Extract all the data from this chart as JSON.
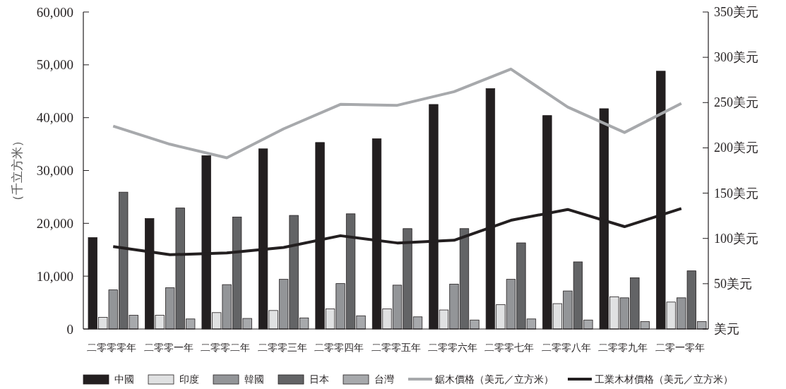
{
  "chart_data": {
    "type": "bar",
    "ylabel": "（千立方米）",
    "categories": [
      "二零零零年",
      "二零零一年",
      "二零零二年",
      "二零零三年",
      "二零零四年",
      "二零零五年",
      "二零零六年",
      "二零零七年",
      "二零零八年",
      "二零零九年",
      "二零一零年"
    ],
    "series": [
      {
        "name": "中國",
        "color": "#231f20",
        "values": [
          17300,
          20900,
          32800,
          34100,
          35300,
          36000,
          42500,
          45500,
          40400,
          41700,
          48800
        ]
      },
      {
        "name": "印度",
        "color": "#e0e1e2",
        "values": [
          2200,
          2600,
          3100,
          3500,
          3800,
          3800,
          3600,
          4600,
          4800,
          6100,
          5100
        ]
      },
      {
        "name": "韓國",
        "color": "#939598",
        "values": [
          7400,
          7800,
          8400,
          9400,
          8600,
          8300,
          8500,
          9400,
          7200,
          5900,
          5900
        ]
      },
      {
        "name": "日本",
        "color": "#636466",
        "values": [
          25900,
          22900,
          21200,
          21500,
          21800,
          19000,
          19000,
          16300,
          12700,
          9700,
          11000
        ]
      },
      {
        "name": "台灣",
        "color": "#a7a9ac",
        "values": [
          2600,
          1900,
          2000,
          2100,
          2500,
          2300,
          1700,
          1900,
          1700,
          1400,
          1400
        ]
      },
      {
        "name": "鋸木價格（美元／立方米）",
        "type": "line",
        "axis": "y2",
        "color": "#a7a9ac",
        "values": [
          224,
          204,
          189,
          221,
          248,
          247,
          262,
          287,
          245,
          217,
          249
        ]
      },
      {
        "name": "工業木材價格（美元／立方米）",
        "type": "line",
        "axis": "y2",
        "color": "#231f20",
        "values": [
          91,
          82,
          84,
          90,
          103,
          95,
          98,
          120,
          132,
          113,
          133
        ]
      }
    ],
    "ylim": [
      0,
      60000
    ],
    "yticks": [
      {
        "value": 0,
        "label": "0"
      },
      {
        "value": 10000,
        "label": "10,000"
      },
      {
        "value": 20000,
        "label": "20,000"
      },
      {
        "value": 30000,
        "label": "30,000"
      },
      {
        "value": 40000,
        "label": "40,000"
      },
      {
        "value": 50000,
        "label": "50,000"
      },
      {
        "value": 60000,
        "label": "60,000"
      }
    ],
    "y2lim": [
      0,
      350
    ],
    "y2ticks": [
      {
        "value": 0,
        "label": "美元"
      },
      {
        "value": 50,
        "label": "50美元"
      },
      {
        "value": 100,
        "label": "100美元"
      },
      {
        "value": 150,
        "label": "150美元"
      },
      {
        "value": 200,
        "label": "200美元"
      },
      {
        "value": 250,
        "label": "250美元"
      },
      {
        "value": 300,
        "label": "300美元"
      },
      {
        "value": 350,
        "label": "350美元"
      }
    ],
    "grid": false,
    "legend": "bottom",
    "line_style": "solid",
    "marker": "none"
  }
}
